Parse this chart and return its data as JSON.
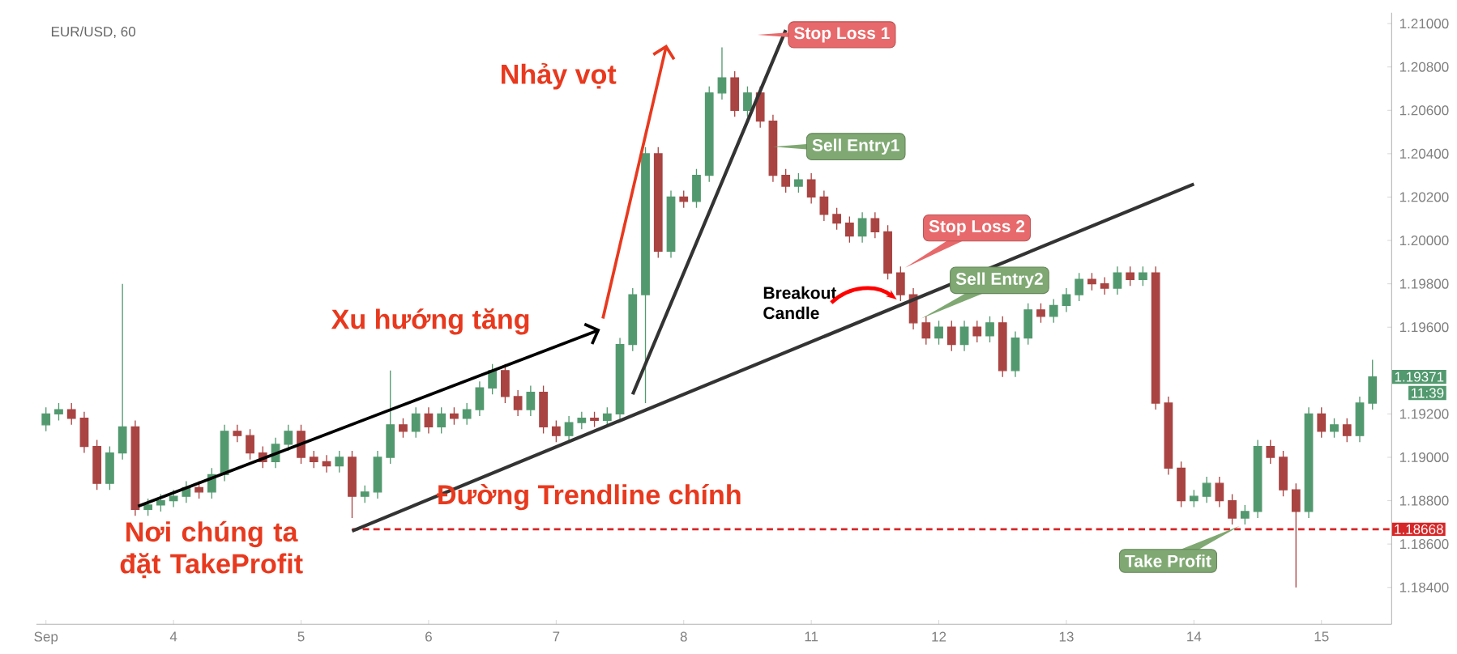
{
  "chart_data": {
    "type": "candlestick",
    "title": "EUR/USD, 60",
    "categories": [
      "Sep",
      null,
      null,
      null,
      null,
      null,
      null,
      null,
      null,
      null,
      "4",
      null,
      null,
      null,
      null,
      null,
      null,
      null,
      null,
      null,
      "5",
      null,
      null,
      null,
      null,
      null,
      null,
      null,
      null,
      null,
      "6",
      null,
      null,
      null,
      null,
      null,
      null,
      null,
      null,
      null,
      "7",
      null,
      null,
      null,
      null,
      null,
      null,
      null,
      null,
      null,
      "8",
      null,
      null,
      null,
      null,
      null,
      null,
      null,
      null,
      null,
      "11",
      null,
      null,
      null,
      null,
      null,
      null,
      null,
      null,
      null,
      "12",
      null,
      null,
      null,
      null,
      null,
      null,
      null,
      null,
      null,
      "13",
      null,
      null,
      null,
      null,
      null,
      null,
      null,
      null,
      null,
      "14",
      null,
      null,
      null,
      null,
      null,
      null,
      null,
      null,
      null,
      "15",
      null,
      null,
      null,
      null
    ],
    "ohlc": [
      [
        1.1915,
        1.1923,
        1.1912,
        1.192
      ],
      [
        1.192,
        1.1925,
        1.1917,
        1.1922
      ],
      [
        1.1922,
        1.1925,
        1.1915,
        1.1918
      ],
      [
        1.1918,
        1.1921,
        1.1902,
        1.1905
      ],
      [
        1.1905,
        1.1908,
        1.1885,
        1.1888
      ],
      [
        1.1888,
        1.1905,
        1.1885,
        1.1902
      ],
      [
        1.1902,
        1.198,
        1.1899,
        1.1914
      ],
      [
        1.1914,
        1.1917,
        1.1873,
        1.1876
      ],
      [
        1.1876,
        1.1881,
        1.1873,
        1.1878
      ],
      [
        1.1878,
        1.1883,
        1.1875,
        1.188
      ],
      [
        1.188,
        1.1885,
        1.1877,
        1.1882
      ],
      [
        1.1882,
        1.1889,
        1.1879,
        1.1886
      ],
      [
        1.1886,
        1.1889,
        1.1881,
        1.1884
      ],
      [
        1.1884,
        1.1895,
        1.1881,
        1.1892
      ],
      [
        1.1892,
        1.1915,
        1.1889,
        1.1912
      ],
      [
        1.1912,
        1.1915,
        1.1907,
        1.191
      ],
      [
        1.191,
        1.1913,
        1.1899,
        1.1902
      ],
      [
        1.1902,
        1.1905,
        1.1895,
        1.1898
      ],
      [
        1.1898,
        1.1909,
        1.1895,
        1.1906
      ],
      [
        1.1906,
        1.1915,
        1.1903,
        1.1912
      ],
      [
        1.1912,
        1.1915,
        1.1897,
        1.19
      ],
      [
        1.19,
        1.1903,
        1.1895,
        1.1898
      ],
      [
        1.1898,
        1.1901,
        1.1893,
        1.1896
      ],
      [
        1.1896,
        1.1903,
        1.1893,
        1.19
      ],
      [
        1.19,
        1.1903,
        1.1872,
        1.1882
      ],
      [
        1.1882,
        1.1887,
        1.1879,
        1.1884
      ],
      [
        1.1884,
        1.1903,
        1.1881,
        1.19
      ],
      [
        1.19,
        1.194,
        1.1897,
        1.1915
      ],
      [
        1.1915,
        1.1918,
        1.1909,
        1.1912
      ],
      [
        1.1912,
        1.1923,
        1.1909,
        1.192
      ],
      [
        1.192,
        1.1923,
        1.1911,
        1.1914
      ],
      [
        1.1914,
        1.1923,
        1.1911,
        1.192
      ],
      [
        1.192,
        1.1923,
        1.1915,
        1.1918
      ],
      [
        1.1918,
        1.1925,
        1.1915,
        1.1922
      ],
      [
        1.1922,
        1.1935,
        1.1919,
        1.1932
      ],
      [
        1.1932,
        1.1943,
        1.1929,
        1.194
      ],
      [
        1.194,
        1.1943,
        1.1925,
        1.1928
      ],
      [
        1.1928,
        1.1931,
        1.1919,
        1.1922
      ],
      [
        1.1922,
        1.1933,
        1.1919,
        1.193
      ],
      [
        1.193,
        1.1933,
        1.1911,
        1.1914
      ],
      [
        1.1914,
        1.1917,
        1.1907,
        1.191
      ],
      [
        1.191,
        1.1919,
        1.1907,
        1.1916
      ],
      [
        1.1916,
        1.1921,
        1.1913,
        1.1918
      ],
      [
        1.1918,
        1.1921,
        1.1914,
        1.1917
      ],
      [
        1.1917,
        1.1923,
        1.1914,
        1.192
      ],
      [
        1.192,
        1.1955,
        1.1917,
        1.1952
      ],
      [
        1.1952,
        1.1978,
        1.1949,
        1.1975
      ],
      [
        1.1975,
        1.2043,
        1.1925,
        1.204
      ],
      [
        1.204,
        1.2043,
        1.1992,
        1.1995
      ],
      [
        1.1995,
        1.2023,
        1.1992,
        1.202
      ],
      [
        1.202,
        1.2023,
        1.2015,
        1.2018
      ],
      [
        1.2018,
        1.2033,
        1.2015,
        1.203
      ],
      [
        1.203,
        1.2071,
        1.2027,
        1.2068
      ],
      [
        1.2068,
        1.2089,
        1.2065,
        1.2075
      ],
      [
        1.2075,
        1.2078,
        1.2057,
        1.206
      ],
      [
        1.206,
        1.2071,
        1.2057,
        1.2068
      ],
      [
        1.2068,
        1.2071,
        1.2052,
        1.2055
      ],
      [
        1.2055,
        1.2058,
        1.2027,
        1.203
      ],
      [
        1.203,
        1.2033,
        1.2022,
        1.2025
      ],
      [
        1.2025,
        1.2031,
        1.2022,
        1.2028
      ],
      [
        1.2028,
        1.2031,
        1.2017,
        1.202
      ],
      [
        1.202,
        1.2023,
        1.2009,
        1.2012
      ],
      [
        1.2012,
        1.2015,
        1.2005,
        1.2008
      ],
      [
        1.2008,
        1.2011,
        1.1999,
        1.2002
      ],
      [
        1.2002,
        1.2013,
        1.1999,
        1.201
      ],
      [
        1.201,
        1.2013,
        1.2001,
        1.2004
      ],
      [
        1.2004,
        1.2007,
        1.1982,
        1.1985
      ],
      [
        1.1985,
        1.1988,
        1.1972,
        1.1975
      ],
      [
        1.1975,
        1.1978,
        1.1959,
        1.1962
      ],
      [
        1.1962,
        1.1965,
        1.1952,
        1.1955
      ],
      [
        1.1955,
        1.1963,
        1.1952,
        1.196
      ],
      [
        1.196,
        1.1963,
        1.1949,
        1.1952
      ],
      [
        1.1952,
        1.1963,
        1.1949,
        1.196
      ],
      [
        1.196,
        1.1963,
        1.1953,
        1.1956
      ],
      [
        1.1956,
        1.1965,
        1.1953,
        1.1962
      ],
      [
        1.1962,
        1.1965,
        1.1937,
        1.194
      ],
      [
        1.194,
        1.1958,
        1.1937,
        1.1955
      ],
      [
        1.1955,
        1.1971,
        1.1952,
        1.1968
      ],
      [
        1.1968,
        1.1971,
        1.1962,
        1.1965
      ],
      [
        1.1965,
        1.1973,
        1.1962,
        1.197
      ],
      [
        1.197,
        1.1978,
        1.1967,
        1.1975
      ],
      [
        1.1975,
        1.1985,
        1.1972,
        1.1982
      ],
      [
        1.1982,
        1.1985,
        1.1977,
        1.198
      ],
      [
        1.198,
        1.1983,
        1.1975,
        1.1978
      ],
      [
        1.1978,
        1.1988,
        1.1975,
        1.1985
      ],
      [
        1.1985,
        1.1988,
        1.1979,
        1.1982
      ],
      [
        1.1982,
        1.1988,
        1.1979,
        1.1985
      ],
      [
        1.1985,
        1.1988,
        1.1922,
        1.1925
      ],
      [
        1.1925,
        1.1928,
        1.1892,
        1.1895
      ],
      [
        1.1895,
        1.1898,
        1.1877,
        1.188
      ],
      [
        1.188,
        1.1885,
        1.1877,
        1.1882
      ],
      [
        1.1882,
        1.1891,
        1.1879,
        1.1888
      ],
      [
        1.1888,
        1.1891,
        1.1877,
        1.188
      ],
      [
        1.188,
        1.1883,
        1.1869,
        1.1872
      ],
      [
        1.1872,
        1.1878,
        1.1869,
        1.1875
      ],
      [
        1.1875,
        1.1908,
        1.1872,
        1.1905
      ],
      [
        1.1905,
        1.1908,
        1.1897,
        1.19
      ],
      [
        1.19,
        1.1903,
        1.1882,
        1.1885
      ],
      [
        1.1885,
        1.1888,
        1.184,
        1.1875
      ],
      [
        1.1875,
        1.1923,
        1.1872,
        1.192
      ],
      [
        1.192,
        1.1923,
        1.1909,
        1.1912
      ],
      [
        1.1912,
        1.1918,
        1.1909,
        1.1915
      ],
      [
        1.1915,
        1.1918,
        1.1907,
        1.191
      ],
      [
        1.191,
        1.1928,
        1.1907,
        1.1925
      ],
      [
        1.1925,
        1.1945,
        1.1922,
        1.19371
      ]
    ],
    "colors": [
      "#53996f",
      "#53996f",
      "#a94442",
      "#a94442",
      "#a94442",
      "#53996f",
      "#53996f",
      "#a94442",
      "#53996f",
      "#53996f",
      "#53996f",
      "#53996f",
      "#a94442",
      "#53996f",
      "#53996f",
      "#a94442",
      "#a94442",
      "#a94442",
      "#53996f",
      "#53996f",
      "#a94442",
      "#a94442",
      "#a94442",
      "#53996f",
      "#a94442",
      "#53996f",
      "#53996f",
      "#53996f",
      "#a94442",
      "#53996f",
      "#a94442",
      "#53996f",
      "#a94442",
      "#53996f",
      "#53996f",
      "#53996f",
      "#a94442",
      "#a94442",
      "#53996f",
      "#a94442",
      "#a94442",
      "#53996f",
      "#53996f",
      "#a94442",
      "#53996f",
      "#53996f",
      "#53996f",
      "#53996f",
      "#a94442",
      "#53996f",
      "#a94442",
      "#53996f",
      "#53996f",
      "#53996f",
      "#a94442",
      "#53996f",
      "#a94442",
      "#a94442",
      "#a94442",
      "#53996f",
      "#a94442",
      "#a94442",
      "#a94442",
      "#a94442",
      "#53996f",
      "#a94442",
      "#a94442",
      "#a94442",
      "#a94442",
      "#a94442",
      "#53996f",
      "#a94442",
      "#53996f",
      "#a94442",
      "#53996f",
      "#a94442",
      "#53996f",
      "#53996f",
      "#a94442",
      "#53996f",
      "#53996f",
      "#53996f",
      "#a94442",
      "#a94442",
      "#53996f",
      "#a94442",
      "#53996f",
      "#a94442",
      "#a94442",
      "#a94442",
      "#53996f",
      "#53996f",
      "#a94442",
      "#a94442",
      "#53996f",
      "#53996f",
      "#a94442",
      "#a94442",
      "#a94442",
      "#53996f",
      "#a94442",
      "#53996f",
      "#a94442",
      "#53996f",
      "#53996f"
    ],
    "series": [
      {
        "type": "line",
        "color": "#333333",
        "values": [
          null,
          null,
          null,
          null,
          null,
          null,
          null,
          null,
          null,
          null,
          null,
          null,
          null,
          null,
          null,
          null,
          null,
          null,
          null,
          null,
          null,
          null,
          null,
          null,
          1.1866,
          null,
          null,
          null,
          null,
          null,
          null,
          null,
          null,
          null,
          null,
          null,
          null,
          null,
          null,
          null,
          null,
          null,
          null,
          null,
          null,
          null,
          null,
          null,
          null,
          null,
          null,
          null,
          null,
          null,
          null,
          null,
          null,
          null,
          null,
          null,
          null,
          null,
          null,
          null,
          null,
          null,
          null,
          null,
          null,
          null,
          null,
          null,
          null,
          null,
          null,
          null,
          null,
          null,
          null,
          null,
          null,
          null,
          null,
          null,
          null,
          null,
          null,
          null,
          null,
          null,
          1.2026,
          null,
          null,
          null,
          null,
          null,
          null,
          null,
          null,
          null,
          null,
          null,
          null,
          null,
          null
        ]
      },
      {
        "type": "line",
        "color": "#333333",
        "values": [
          null,
          null,
          null,
          null,
          null,
          null,
          null,
          null,
          null,
          null,
          null,
          null,
          null,
          null,
          null,
          null,
          null,
          null,
          null,
          null,
          null,
          null,
          null,
          null,
          null,
          null,
          null,
          null,
          null,
          null,
          null,
          null,
          null,
          null,
          null,
          null,
          null,
          null,
          null,
          null,
          null,
          null,
          null,
          null,
          null,
          null,
          1.1929,
          null,
          null,
          null,
          null,
          null,
          null,
          null,
          null,
          null,
          null,
          null,
          1.2097,
          null,
          null,
          null,
          null,
          null,
          null,
          null,
          null,
          null,
          null,
          null,
          null,
          null,
          null,
          null,
          null,
          null,
          null,
          null,
          null,
          null,
          null,
          null,
          null,
          null,
          null,
          null,
          null,
          null,
          null,
          null,
          null,
          null,
          null,
          null,
          null,
          null,
          null,
          null,
          null,
          null,
          null,
          null,
          null,
          null,
          null
        ]
      }
    ],
    "ylim": [
      1.1823,
      1.2105
    ],
    "yticks": [
      {
        "value": 1.184,
        "label": "1.18400"
      },
      {
        "value": 1.186,
        "label": "1.18600"
      },
      {
        "value": 1.188,
        "label": "1.18800"
      },
      {
        "value": 1.19,
        "label": "1.19000"
      },
      {
        "value": 1.192,
        "label": "1.19200"
      },
      {
        "value": 1.196,
        "label": "1.19600"
      },
      {
        "value": 1.198,
        "label": "1.19800"
      },
      {
        "value": 1.2,
        "label": "1.20000"
      },
      {
        "value": 1.202,
        "label": "1.20200"
      },
      {
        "value": 1.204,
        "label": "1.20400"
      },
      {
        "value": 1.206,
        "label": "1.20600"
      },
      {
        "value": 1.208,
        "label": "1.20800"
      },
      {
        "value": 1.21,
        "label": "1.21000"
      }
    ],
    "ref_lines": [
      {
        "axis": "y",
        "value": 1.18668,
        "label": "1.18668",
        "color": "#d62728",
        "line_style": "dashed"
      }
    ],
    "annotations": [
      "Stop Loss 1",
      "Sell Entry1",
      "Stop Loss 2",
      "Sell Entry2",
      "Take Profit",
      "Breakout Candle",
      "Nhảy vọt",
      "Xu hướng tăng",
      "Đường Trendline chính",
      "Nơi chúng ta đặt TakeProfit",
      "1.19371",
      "11:39"
    ]
  }
}
